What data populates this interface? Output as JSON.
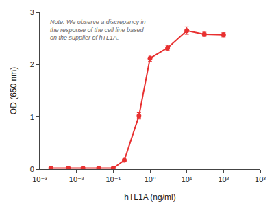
{
  "chart_data": {
    "type": "line",
    "x": [
      0.002,
      0.006,
      0.015,
      0.04,
      0.1,
      0.2,
      0.5,
      1.0,
      3.0,
      10.0,
      30.0,
      100.0
    ],
    "values": [
      0.02,
      0.02,
      0.02,
      0.02,
      0.02,
      0.17,
      1.02,
      2.12,
      2.32,
      2.65,
      2.58,
      2.57
    ],
    "errors": [
      0.008,
      0.006,
      0.006,
      0.006,
      0.008,
      0.025,
      0.06,
      0.06,
      0.05,
      0.07,
      0.04,
      0.04
    ],
    "color": "#e83030",
    "marker": "circle",
    "xlabel": "hTL1A (ng/ml)",
    "ylabel": "OD (650 nm)",
    "annotations": [
      "Note: We observe a discrepancy in\nthe response of the cell line based\non the supplier of hTL1A."
    ],
    "log": "x",
    "xlim": [
      0.001,
      1000
    ],
    "xticks": [
      {
        "value": 0.001,
        "label": "10⁻³"
      },
      {
        "value": 0.01,
        "label": "10⁻²"
      },
      {
        "value": 0.1,
        "label": "10⁻¹"
      },
      {
        "value": 1,
        "label": "10⁰"
      },
      {
        "value": 10,
        "label": "10¹"
      },
      {
        "value": 100,
        "label": "10²"
      },
      {
        "value": 1000,
        "label": "10³"
      }
    ],
    "ylim": [
      0,
      3
    ],
    "yticks": [
      0,
      1,
      2,
      3
    ],
    "grid": false
  }
}
